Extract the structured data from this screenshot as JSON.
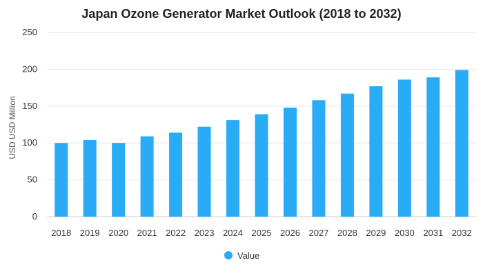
{
  "chart_data": {
    "type": "bar",
    "title": "Japan Ozone Generator Market Outlook (2018 to 2032)",
    "xlabel": "",
    "ylabel": "USD USD Million",
    "ylim": [
      0,
      250
    ],
    "yticks": [
      0,
      50,
      100,
      150,
      200,
      250
    ],
    "grid": true,
    "legend_position": "bottom",
    "categories": [
      "2018",
      "2019",
      "2020",
      "2021",
      "2022",
      "2023",
      "2024",
      "2025",
      "2026",
      "2027",
      "2028",
      "2029",
      "2030",
      "2031",
      "2032"
    ],
    "series": [
      {
        "name": "Value",
        "color": "#2aabf6",
        "values": [
          100,
          104,
          100,
          109,
          114,
          122,
          131,
          139,
          148,
          158,
          167,
          177,
          186,
          189,
          199
        ]
      }
    ]
  }
}
